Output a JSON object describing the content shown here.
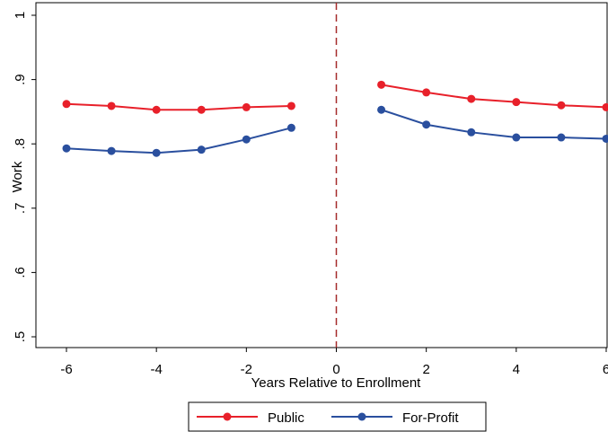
{
  "chart_data": {
    "type": "line",
    "xlabel": "Years Relative to Enrollment",
    "ylabel": "Work",
    "xlim": [
      -6,
      6
    ],
    "ylim": [
      0.5,
      1.0
    ],
    "x_ticks": [
      -6,
      -4,
      -2,
      0,
      2,
      4,
      6
    ],
    "x_tick_labels": [
      "-6",
      "-4",
      "-2",
      "0",
      "2",
      "4",
      "6"
    ],
    "y_ticks": [
      0.5,
      0.6,
      0.7,
      0.8,
      0.9,
      1.0
    ],
    "y_tick_labels": [
      ".5",
      ".6",
      ".7",
      ".8",
      ".9",
      "1"
    ],
    "reference_line": {
      "x": 0,
      "style": "dashed",
      "color": "#a52a2a"
    },
    "legend_position": "bottom",
    "series": [
      {
        "name": "Public",
        "color": "#e8202a",
        "segments": [
          {
            "x": [
              -6,
              -5,
              -4,
              -3,
              -2,
              -1
            ],
            "y": [
              0.862,
              0.859,
              0.853,
              0.853,
              0.857,
              0.859
            ]
          },
          {
            "x": [
              1,
              2,
              3,
              4,
              5,
              6
            ],
            "y": [
              0.892,
              0.88,
              0.87,
              0.865,
              0.86,
              0.857
            ]
          }
        ]
      },
      {
        "name": "For-Profit",
        "color": "#2a4f9e",
        "segments": [
          {
            "x": [
              -6,
              -5,
              -4,
              -3,
              -2,
              -1
            ],
            "y": [
              0.793,
              0.789,
              0.786,
              0.791,
              0.807,
              0.825
            ]
          },
          {
            "x": [
              1,
              2,
              3,
              4,
              5,
              6
            ],
            "y": [
              0.853,
              0.83,
              0.818,
              0.81,
              0.81,
              0.808
            ]
          }
        ]
      }
    ]
  }
}
